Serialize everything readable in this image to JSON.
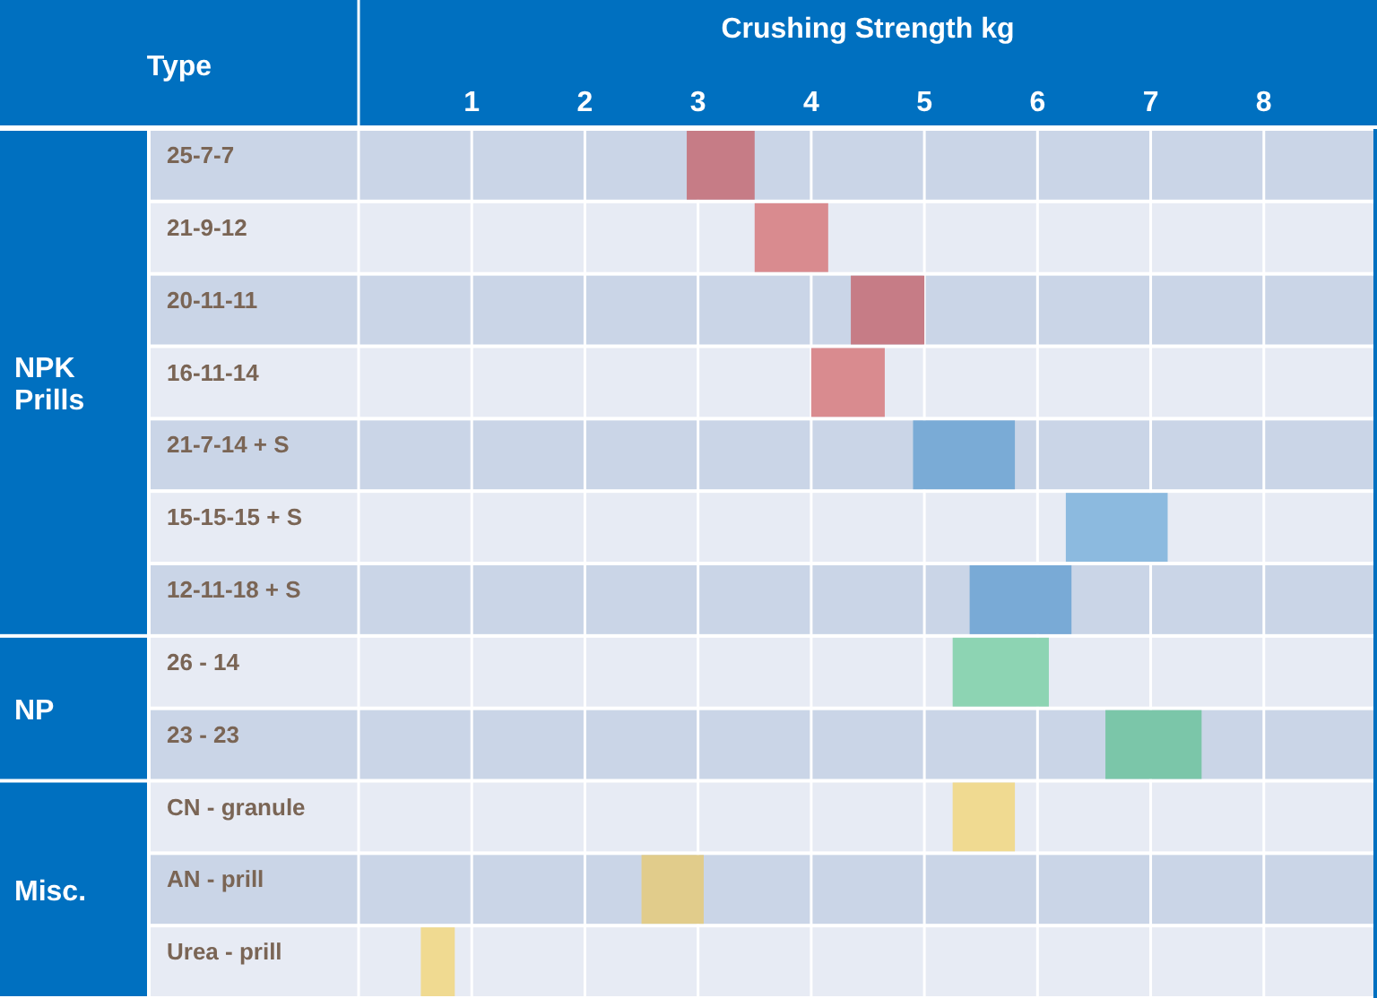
{
  "chart_data": {
    "type": "bar",
    "orientation": "horizontal",
    "xlabel": "Crushing Strength kg",
    "ylabel": "Type",
    "categories": [
      "25-7-7",
      "21-9-12",
      "20-11-11",
      "16-11-14",
      "21-7-14 + S",
      "15-15-15 + S",
      "12-11-18 + S",
      "26 - 14",
      "23 - 23",
      "CN - granule",
      "AN - prill",
      "Urea - prill"
    ],
    "base": [
      2.9,
      3.5,
      4.35,
      4.0,
      4.9,
      6.25,
      5.4,
      5.25,
      6.6,
      5.25,
      2.5,
      0.55
    ],
    "values": [
      0.6,
      0.65,
      0.65,
      0.65,
      0.9,
      0.9,
      0.9,
      0.85,
      0.85,
      0.55,
      0.55,
      0.3
    ],
    "colors": [
      "#c67c86",
      "#d98b8f",
      "#c67c86",
      "#d98b8f",
      "#7aabd6",
      "#8cbadf",
      "#79aad6",
      "#8dd4b3",
      "#7bc6a9",
      "#f0da91",
      "#e1cc8b",
      "#f0da91"
    ],
    "xlim": [
      0,
      9
    ],
    "xticks": [
      1,
      2,
      3,
      4,
      5,
      6,
      7,
      8
    ],
    "grid": "x",
    "annotations": [
      "NPK Prills",
      "NP",
      "Misc."
    ]
  }
}
